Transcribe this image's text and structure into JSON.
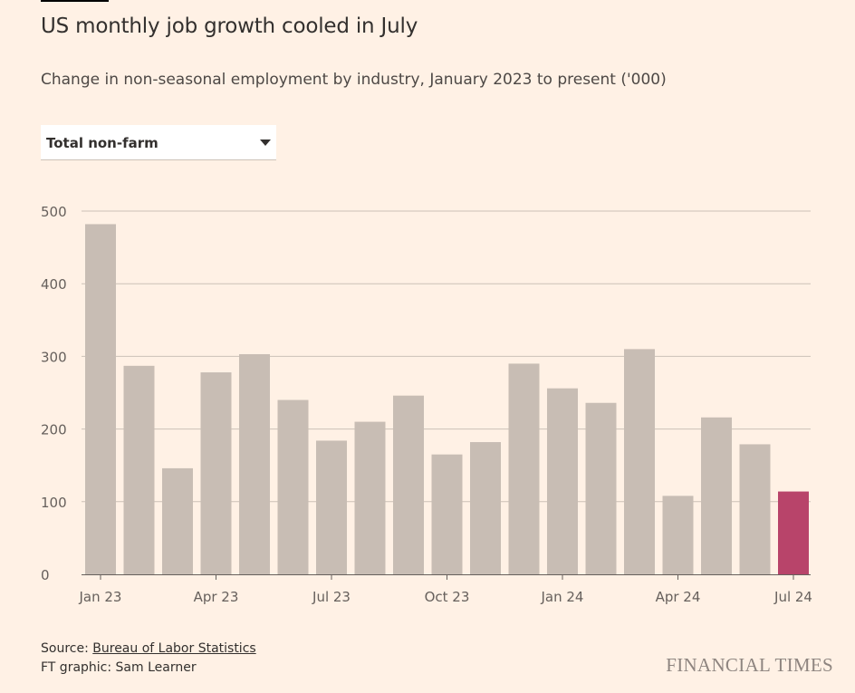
{
  "title": "US monthly job growth cooled in July",
  "subtitle": "Change in non-seasonal employment by industry, January 2023 to present ('000)",
  "dropdown": {
    "selected": "Total non-farm"
  },
  "source_prefix": "Source: ",
  "source_link": "Bureau of Labor Statistics",
  "credit": "FT graphic: Sam Learner",
  "brand": "FINANCIAL TIMES",
  "colors": {
    "bar": "#c8bdb4",
    "highlight": "#b8446a",
    "background": "#fff1e5",
    "grid": "#ccc1b7"
  },
  "chart_data": {
    "type": "bar",
    "categories": [
      "Jan 23",
      "Feb 23",
      "Mar 23",
      "Apr 23",
      "May 23",
      "Jun 23",
      "Jul 23",
      "Aug 23",
      "Sep 23",
      "Oct 23",
      "Nov 23",
      "Dec 23",
      "Jan 24",
      "Feb 24",
      "Mar 24",
      "Apr 24",
      "May 24",
      "Jun 24",
      "Jul 24"
    ],
    "values": [
      482,
      287,
      146,
      278,
      303,
      240,
      184,
      210,
      246,
      165,
      182,
      290,
      256,
      236,
      310,
      108,
      216,
      179,
      114
    ],
    "highlighted": [
      "Jul 24"
    ],
    "ylim": [
      0,
      500
    ],
    "yticks": [
      0,
      100,
      200,
      300,
      400,
      500
    ],
    "xtick_labels": [
      "Jan 23",
      "Apr 23",
      "Jul 23",
      "Oct 23",
      "Jan 24",
      "Apr 24",
      "Jul 24"
    ],
    "grid": true
  }
}
